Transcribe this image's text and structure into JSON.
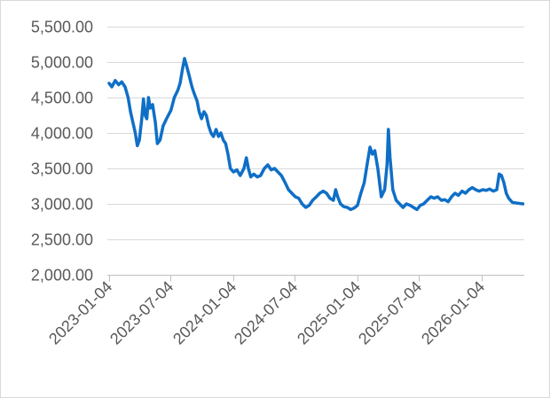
{
  "chart_data": {
    "type": "line",
    "title": "",
    "xlabel": "",
    "ylabel": "",
    "x_axis": {
      "type": "date",
      "range": [
        "2023-01-04",
        "2026-05-10"
      ],
      "ticks": [
        "2023-01-04",
        "2023-07-04",
        "2024-01-04",
        "2024-07-04",
        "2025-01-04",
        "2025-07-04",
        "2026-01-04"
      ]
    },
    "y_axis": {
      "range": [
        2000,
        5500
      ],
      "ticks": [
        2000,
        2500,
        3000,
        3500,
        4000,
        4500,
        5000,
        5500
      ],
      "tick_labels": [
        "2,000.00",
        "2,500.00",
        "3,000.00",
        "3,500.00",
        "4,000.00",
        "4,500.00",
        "5,000.00",
        "5,500.00"
      ]
    },
    "grid": true,
    "legend": "none",
    "series": [
      {
        "color": "#0f6fc6",
        "points": [
          [
            "2023-01-04",
            4700
          ],
          [
            "2023-01-12",
            4650
          ],
          [
            "2023-01-22",
            4740
          ],
          [
            "2023-02-01",
            4680
          ],
          [
            "2023-02-10",
            4720
          ],
          [
            "2023-02-20",
            4650
          ],
          [
            "2023-03-01",
            4500
          ],
          [
            "2023-03-08",
            4300
          ],
          [
            "2023-03-15",
            4150
          ],
          [
            "2023-03-22",
            4000
          ],
          [
            "2023-03-28",
            3820
          ],
          [
            "2023-04-03",
            3900
          ],
          [
            "2023-04-10",
            4200
          ],
          [
            "2023-04-15",
            4480
          ],
          [
            "2023-04-20",
            4250
          ],
          [
            "2023-04-25",
            4200
          ],
          [
            "2023-04-30",
            4500
          ],
          [
            "2023-05-05",
            4350
          ],
          [
            "2023-05-12",
            4400
          ],
          [
            "2023-05-20",
            4150
          ],
          [
            "2023-05-26",
            3850
          ],
          [
            "2023-06-03",
            3900
          ],
          [
            "2023-06-12",
            4100
          ],
          [
            "2023-06-22",
            4200
          ],
          [
            "2023-07-05",
            4320
          ],
          [
            "2023-07-15",
            4500
          ],
          [
            "2023-07-25",
            4600
          ],
          [
            "2023-08-01",
            4700
          ],
          [
            "2023-08-08",
            4900
          ],
          [
            "2023-08-14",
            5050
          ],
          [
            "2023-08-20",
            4950
          ],
          [
            "2023-08-28",
            4800
          ],
          [
            "2023-09-05",
            4650
          ],
          [
            "2023-09-12",
            4550
          ],
          [
            "2023-09-20",
            4450
          ],
          [
            "2023-09-26",
            4300
          ],
          [
            "2023-10-03",
            4200
          ],
          [
            "2023-10-10",
            4300
          ],
          [
            "2023-10-17",
            4250
          ],
          [
            "2023-10-24",
            4100
          ],
          [
            "2023-10-31",
            4000
          ],
          [
            "2023-11-07",
            3950
          ],
          [
            "2023-11-15",
            4050
          ],
          [
            "2023-11-22",
            3950
          ],
          [
            "2023-11-29",
            4000
          ],
          [
            "2023-12-06",
            3900
          ],
          [
            "2023-12-13",
            3850
          ],
          [
            "2023-12-20",
            3700
          ],
          [
            "2023-12-27",
            3500
          ],
          [
            "2024-01-05",
            3450
          ],
          [
            "2024-01-15",
            3480
          ],
          [
            "2024-01-25",
            3400
          ],
          [
            "2024-02-05",
            3500
          ],
          [
            "2024-02-12",
            3650
          ],
          [
            "2024-02-18",
            3500
          ],
          [
            "2024-02-25",
            3380
          ],
          [
            "2024-03-05",
            3420
          ],
          [
            "2024-03-15",
            3380
          ],
          [
            "2024-03-25",
            3400
          ],
          [
            "2024-04-05",
            3500
          ],
          [
            "2024-04-15",
            3550
          ],
          [
            "2024-04-25",
            3480
          ],
          [
            "2024-05-05",
            3500
          ],
          [
            "2024-05-15",
            3450
          ],
          [
            "2024-05-25",
            3400
          ],
          [
            "2024-06-05",
            3300
          ],
          [
            "2024-06-15",
            3200
          ],
          [
            "2024-06-25",
            3150
          ],
          [
            "2024-07-05",
            3100
          ],
          [
            "2024-07-15",
            3080
          ],
          [
            "2024-07-25",
            3000
          ],
          [
            "2024-08-05",
            2950
          ],
          [
            "2024-08-15",
            2980
          ],
          [
            "2024-08-25",
            3050
          ],
          [
            "2024-09-05",
            3100
          ],
          [
            "2024-09-15",
            3150
          ],
          [
            "2024-09-25",
            3180
          ],
          [
            "2024-10-05",
            3150
          ],
          [
            "2024-10-15",
            3080
          ],
          [
            "2024-10-25",
            3050
          ],
          [
            "2024-11-01",
            3200
          ],
          [
            "2024-11-07",
            3100
          ],
          [
            "2024-11-15",
            3000
          ],
          [
            "2024-11-25",
            2960
          ],
          [
            "2024-12-05",
            2950
          ],
          [
            "2024-12-15",
            2920
          ],
          [
            "2024-12-25",
            2940
          ],
          [
            "2025-01-04",
            2980
          ],
          [
            "2025-01-14",
            3150
          ],
          [
            "2025-01-24",
            3300
          ],
          [
            "2025-02-03",
            3600
          ],
          [
            "2025-02-10",
            3800
          ],
          [
            "2025-02-17",
            3700
          ],
          [
            "2025-02-24",
            3750
          ],
          [
            "2025-03-05",
            3500
          ],
          [
            "2025-03-15",
            3100
          ],
          [
            "2025-03-25",
            3200
          ],
          [
            "2025-04-01",
            3550
          ],
          [
            "2025-04-05",
            4050
          ],
          [
            "2025-04-10",
            3650
          ],
          [
            "2025-04-18",
            3200
          ],
          [
            "2025-04-28",
            3050
          ],
          [
            "2025-05-08",
            3000
          ],
          [
            "2025-05-18",
            2950
          ],
          [
            "2025-05-28",
            3000
          ],
          [
            "2025-06-08",
            2980
          ],
          [
            "2025-06-18",
            2950
          ],
          [
            "2025-06-28",
            2920
          ],
          [
            "2025-07-08",
            2980
          ],
          [
            "2025-07-18",
            3000
          ],
          [
            "2025-07-28",
            3050
          ],
          [
            "2025-08-08",
            3100
          ],
          [
            "2025-08-18",
            3080
          ],
          [
            "2025-08-28",
            3100
          ],
          [
            "2025-09-08",
            3050
          ],
          [
            "2025-09-18",
            3060
          ],
          [
            "2025-09-28",
            3030
          ],
          [
            "2025-10-08",
            3100
          ],
          [
            "2025-10-18",
            3150
          ],
          [
            "2025-10-28",
            3120
          ],
          [
            "2025-11-08",
            3180
          ],
          [
            "2025-11-18",
            3150
          ],
          [
            "2025-11-28",
            3200
          ],
          [
            "2025-12-08",
            3230
          ],
          [
            "2025-12-18",
            3200
          ],
          [
            "2025-12-28",
            3180
          ],
          [
            "2026-01-08",
            3200
          ],
          [
            "2026-01-18",
            3190
          ],
          [
            "2026-01-28",
            3210
          ],
          [
            "2026-02-08",
            3180
          ],
          [
            "2026-02-18",
            3200
          ],
          [
            "2026-02-25",
            3420
          ],
          [
            "2026-03-04",
            3400
          ],
          [
            "2026-03-11",
            3300
          ],
          [
            "2026-03-18",
            3150
          ],
          [
            "2026-03-25",
            3080
          ],
          [
            "2026-04-05",
            3020
          ],
          [
            "2026-04-20",
            3010
          ],
          [
            "2026-05-06",
            3000
          ]
        ]
      }
    ]
  }
}
